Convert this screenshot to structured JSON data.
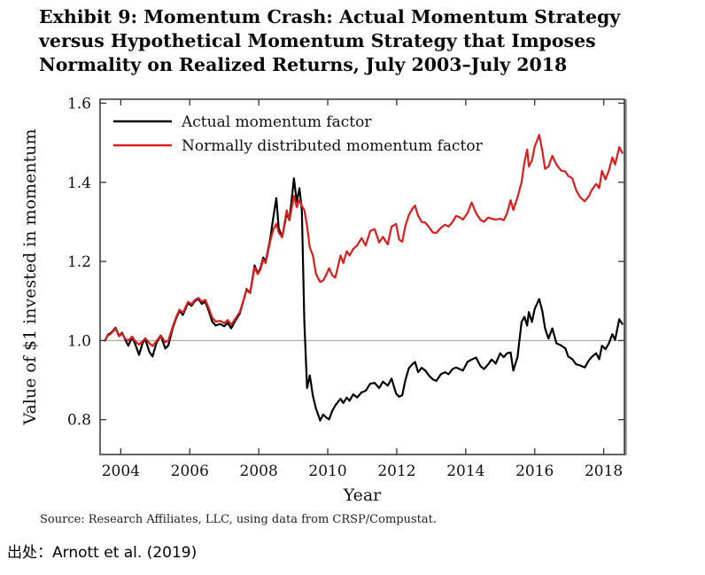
{
  "title": "Exhibit 9: Momentum Crash: Actual Momentum Strategy versus Hypothetical Momentum Strategy that Imposes Normality on Realized Returns, July 2003–July 2018",
  "source_note": "Source: Research Affiliates, LLC, using data from CRSP/Compustat.",
  "caption": "出处：Arnott et al. (2019)",
  "chart_data": {
    "type": "line",
    "xlabel": "Year",
    "ylabel": "Value of $1 invested in momentum",
    "x_ticks": [
      2004,
      2006,
      2008,
      2010,
      2012,
      2014,
      2016,
      2018
    ],
    "y_ticks": [
      0.8,
      1.0,
      1.2,
      1.4,
      1.6
    ],
    "xlim": [
      2003.4,
      2018.6
    ],
    "ylim": [
      0.712,
      1.61
    ],
    "grid": false,
    "reference_line_y": 1.0,
    "reference_line_color": "#9a9a9a",
    "legend_position": "top-left",
    "frame_color": "#333333",
    "x": [
      2003.54,
      2003.63,
      2003.72,
      2003.85,
      2003.95,
      2004.04,
      2004.13,
      2004.22,
      2004.33,
      2004.42,
      2004.53,
      2004.63,
      2004.71,
      2004.83,
      2004.92,
      2005.03,
      2005.16,
      2005.29,
      2005.38,
      2005.5,
      2005.6,
      2005.7,
      2005.8,
      2005.95,
      2006.05,
      2006.15,
      2006.25,
      2006.35,
      2006.45,
      2006.55,
      2006.65,
      2006.75,
      2006.88,
      2007.0,
      2007.1,
      2007.2,
      2007.32,
      2007.45,
      2007.57,
      2007.65,
      2007.75,
      2007.88,
      2007.97,
      2008.05,
      2008.13,
      2008.2,
      2008.33,
      2008.42,
      2008.51,
      2008.58,
      2008.68,
      2008.81,
      2008.89,
      2009.02,
      2009.1,
      2009.18,
      2009.25,
      2009.32,
      2009.4,
      2009.48,
      2009.57,
      2009.66,
      2009.78,
      2009.87,
      2009.95,
      2010.04,
      2010.13,
      2010.22,
      2010.37,
      2010.45,
      2010.55,
      2010.63,
      2010.74,
      2010.85,
      2010.98,
      2011.1,
      2011.23,
      2011.36,
      2011.49,
      2011.6,
      2011.74,
      2011.85,
      2011.98,
      2012.07,
      2012.16,
      2012.25,
      2012.35,
      2012.45,
      2012.53,
      2012.62,
      2012.72,
      2012.83,
      2012.95,
      2013.05,
      2013.15,
      2013.28,
      2013.4,
      2013.5,
      2013.62,
      2013.72,
      2013.82,
      2013.92,
      2014.05,
      2014.17,
      2014.3,
      2014.43,
      2014.53,
      2014.65,
      2014.75,
      2014.87,
      2015.0,
      2015.1,
      2015.2,
      2015.3,
      2015.38,
      2015.5,
      2015.62,
      2015.7,
      2015.78,
      2015.83,
      2015.92,
      2016.0,
      2016.13,
      2016.22,
      2016.3,
      2016.4,
      2016.51,
      2016.63,
      2016.76,
      2016.89,
      2016.97,
      2017.09,
      2017.2,
      2017.32,
      2017.45,
      2017.57,
      2017.65,
      2017.78,
      2017.87,
      2017.95,
      2018.05,
      2018.15,
      2018.25,
      2018.33,
      2018.45,
      2018.54
    ],
    "series": [
      {
        "name": "Actual momentum factor",
        "color": "#000000",
        "values": [
          1.0,
          1.015,
          1.02,
          1.032,
          1.012,
          1.02,
          1.002,
          0.987,
          1.009,
          0.991,
          0.964,
          0.993,
          1.004,
          0.971,
          0.96,
          0.993,
          1.013,
          0.98,
          0.988,
          1.03,
          1.055,
          1.075,
          1.065,
          1.095,
          1.088,
          1.1,
          1.105,
          1.093,
          1.098,
          1.075,
          1.048,
          1.038,
          1.042,
          1.036,
          1.045,
          1.031,
          1.05,
          1.068,
          1.105,
          1.13,
          1.12,
          1.19,
          1.17,
          1.183,
          1.21,
          1.199,
          1.255,
          1.31,
          1.36,
          1.284,
          1.261,
          1.322,
          1.304,
          1.41,
          1.35,
          1.385,
          1.33,
          1.05,
          0.88,
          0.912,
          0.86,
          0.828,
          0.798,
          0.813,
          0.806,
          0.801,
          0.822,
          0.836,
          0.853,
          0.842,
          0.856,
          0.848,
          0.864,
          0.856,
          0.869,
          0.873,
          0.891,
          0.893,
          0.88,
          0.896,
          0.886,
          0.904,
          0.866,
          0.858,
          0.862,
          0.9,
          0.93,
          0.94,
          0.946,
          0.92,
          0.931,
          0.924,
          0.91,
          0.902,
          0.898,
          0.915,
          0.92,
          0.915,
          0.928,
          0.932,
          0.928,
          0.924,
          0.946,
          0.952,
          0.957,
          0.935,
          0.928,
          0.94,
          0.952,
          0.942,
          0.968,
          0.958,
          0.968,
          0.97,
          0.924,
          0.958,
          1.047,
          1.06,
          1.038,
          1.072,
          1.047,
          1.08,
          1.105,
          1.075,
          1.031,
          1.005,
          1.031,
          0.993,
          0.988,
          0.98,
          0.96,
          0.953,
          0.94,
          0.937,
          0.932,
          0.95,
          0.958,
          0.968,
          0.953,
          0.987,
          0.978,
          0.993,
          1.016,
          1.002,
          1.054,
          1.042
        ]
      },
      {
        "name": "Normally distributed momentum factor",
        "color": "#dd1c1c",
        "values": [
          1.0,
          1.013,
          1.018,
          1.03,
          1.011,
          1.018,
          1.004,
          1.0,
          1.01,
          0.998,
          0.99,
          0.998,
          1.006,
          0.993,
          0.986,
          0.998,
          1.013,
          0.996,
          1.0,
          1.034,
          1.058,
          1.078,
          1.07,
          1.098,
          1.092,
          1.103,
          1.108,
          1.098,
          1.103,
          1.082,
          1.058,
          1.048,
          1.05,
          1.044,
          1.052,
          1.04,
          1.055,
          1.072,
          1.105,
          1.128,
          1.12,
          1.185,
          1.168,
          1.18,
          1.205,
          1.196,
          1.25,
          1.28,
          1.295,
          1.273,
          1.261,
          1.329,
          1.304,
          1.366,
          1.337,
          1.355,
          1.34,
          1.33,
          1.29,
          1.235,
          1.215,
          1.168,
          1.148,
          1.152,
          1.165,
          1.183,
          1.165,
          1.159,
          1.215,
          1.196,
          1.226,
          1.215,
          1.232,
          1.24,
          1.259,
          1.24,
          1.277,
          1.282,
          1.248,
          1.262,
          1.243,
          1.288,
          1.295,
          1.255,
          1.25,
          1.29,
          1.317,
          1.333,
          1.341,
          1.315,
          1.3,
          1.298,
          1.285,
          1.273,
          1.272,
          1.285,
          1.293,
          1.288,
          1.3,
          1.315,
          1.312,
          1.306,
          1.322,
          1.349,
          1.322,
          1.305,
          1.3,
          1.311,
          1.308,
          1.306,
          1.308,
          1.304,
          1.322,
          1.355,
          1.33,
          1.362,
          1.4,
          1.45,
          1.483,
          1.44,
          1.455,
          1.49,
          1.52,
          1.48,
          1.434,
          1.44,
          1.467,
          1.445,
          1.43,
          1.427,
          1.416,
          1.41,
          1.38,
          1.362,
          1.352,
          1.365,
          1.38,
          1.396,
          1.385,
          1.429,
          1.407,
          1.43,
          1.463,
          1.445,
          1.489,
          1.474
        ]
      }
    ]
  }
}
